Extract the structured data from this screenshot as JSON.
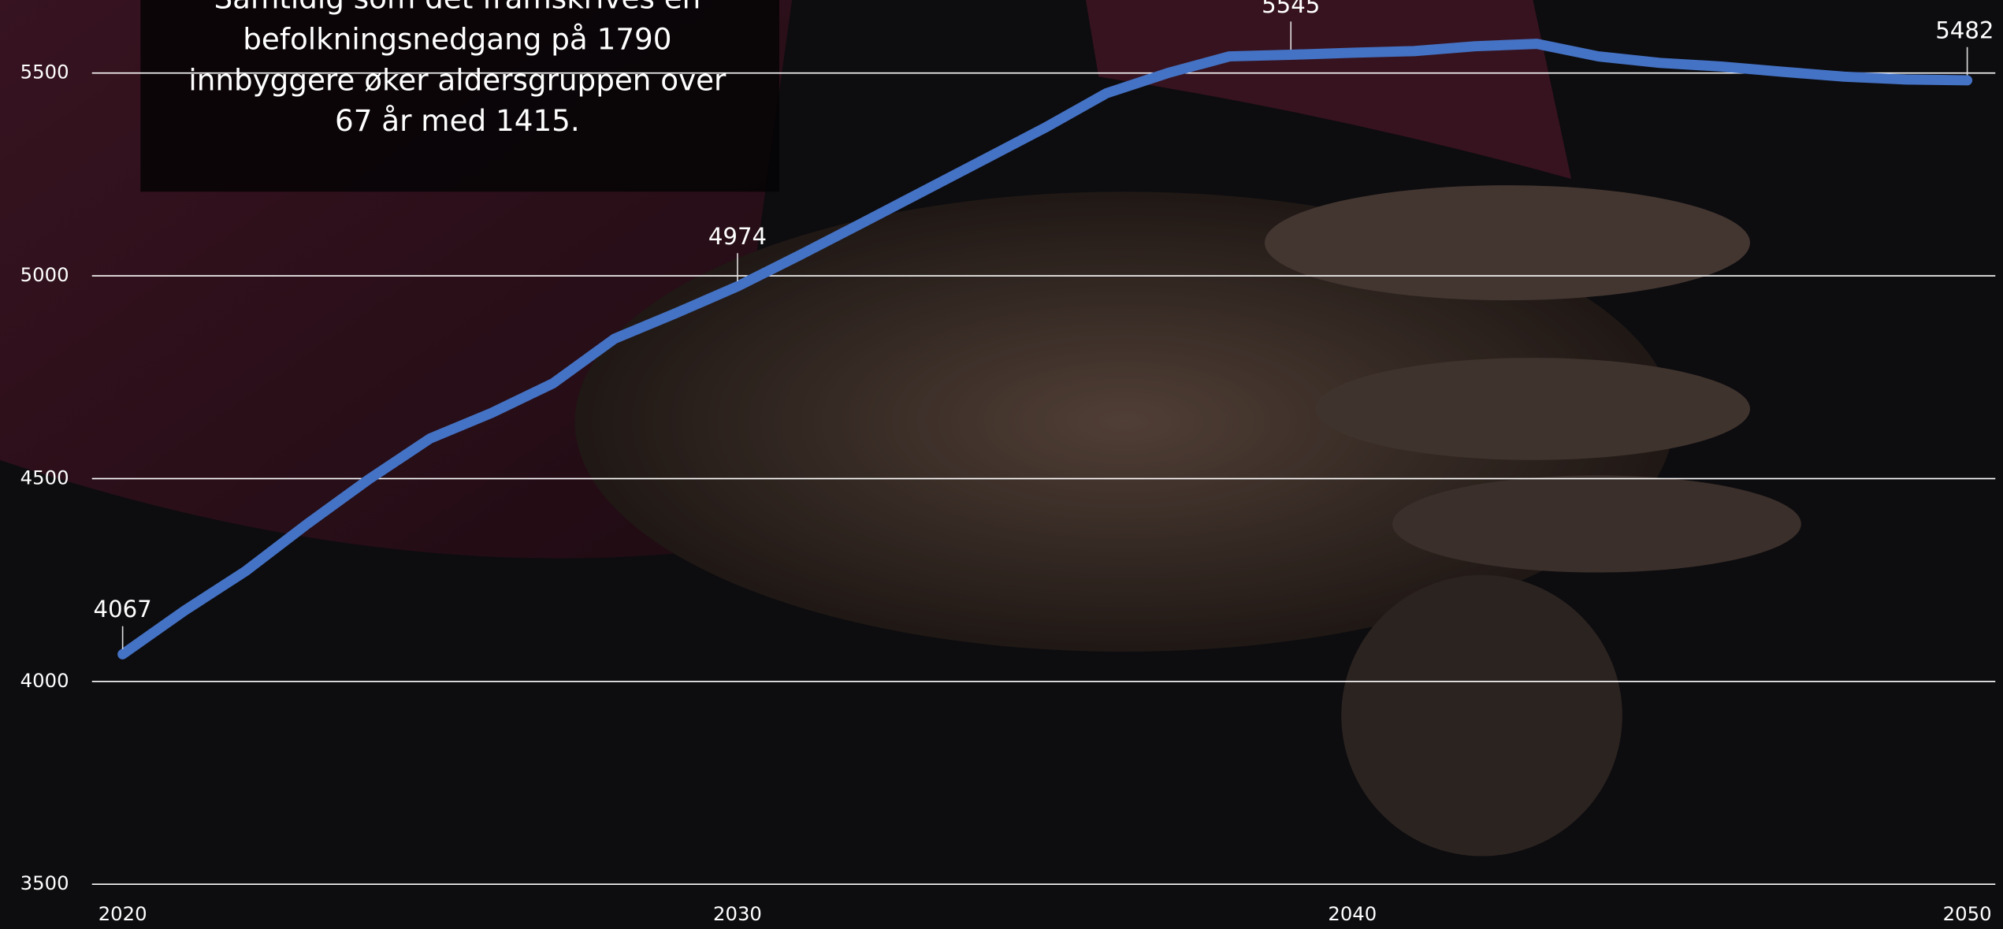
{
  "chart_data": {
    "type": "line",
    "annotation": [
      "Samtidig som det framskrives en",
      "befolkningsnedgang på 1790",
      "innbyggere øker aldersgruppen over",
      "67 år med 1415."
    ],
    "x": [
      2020,
      2021,
      2022,
      2023,
      2024,
      2025,
      2026,
      2027,
      2028,
      2029,
      2030,
      2031,
      2032,
      2033,
      2034,
      2035,
      2036,
      2037,
      2038,
      2039,
      2040,
      2041,
      2042,
      2043,
      2044,
      2045,
      2046,
      2047,
      2048,
      2049,
      2050
    ],
    "series": [
      {
        "color": "#4472c4",
        "values": [
          4067,
          4174,
          4272,
          4388,
          4498,
          4599,
          4662,
          4735,
          4845,
          4908,
          4974,
          5050,
          5128,
          5207,
          5286,
          5365,
          5450,
          5500,
          5541,
          5545,
          5550,
          5554,
          5566,
          5572,
          5541,
          5525,
          5516,
          5503,
          5491,
          5484,
          5482
        ]
      }
    ],
    "xlim": [
      2020,
      2050
    ],
    "xticks": [
      2020,
      2030,
      2040,
      2050
    ],
    "ylim": [
      3500,
      5680
    ],
    "yticks": [
      3500,
      4000,
      4500,
      5000,
      5500
    ],
    "grid": true
  }
}
